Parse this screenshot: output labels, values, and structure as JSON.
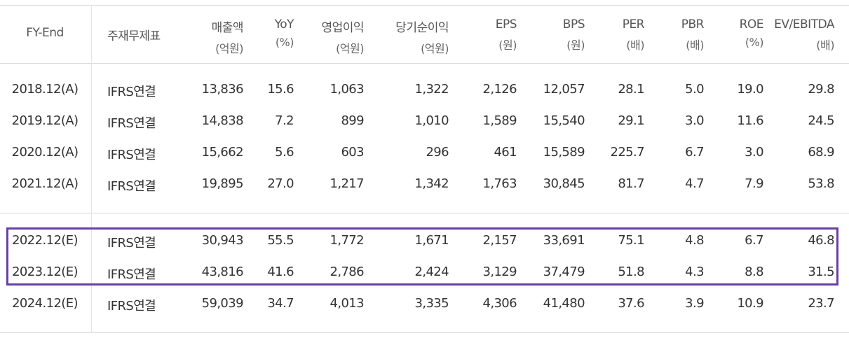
{
  "columns": [
    {
      "label": "FY-End",
      "unit": ""
    },
    {
      "label": "주재무제표",
      "unit": ""
    },
    {
      "label": "매출액",
      "unit": "(억원)"
    },
    {
      "label": "YoY",
      "unit": "(%)"
    },
    {
      "label": "영업이익",
      "unit": "(억원)"
    },
    {
      "label": "당기순이익",
      "unit": "(억원)"
    },
    {
      "label": "EPS",
      "unit": "(원)"
    },
    {
      "label": "BPS",
      "unit": "(원)"
    },
    {
      "label": "PER",
      "unit": "(배)"
    },
    {
      "label": "PBR",
      "unit": "(배)"
    },
    {
      "label": "ROE",
      "unit": "(%)"
    },
    {
      "label": "EV/EBITDA",
      "unit": "(배)"
    }
  ],
  "rows": [
    [
      "2018.12(A)",
      "IFRS연결",
      "13,836",
      "15.6",
      "1,063",
      "1,322",
      "2,126",
      "12,057",
      "28.1",
      "5.0",
      "19.0",
      "29.8"
    ],
    [
      "2019.12(A)",
      "IFRS연결",
      "14,838",
      "7.2",
      "899",
      "1,010",
      "1,589",
      "15,540",
      "29.1",
      "3.0",
      "11.6",
      "24.5"
    ],
    [
      "2020.12(A)",
      "IFRS연결",
      "15,662",
      "5.6",
      "603",
      "296",
      "461",
      "15,589",
      "225.7",
      "6.7",
      "3.0",
      "68.9"
    ],
    [
      "2021.12(A)",
      "IFRS연결",
      "19,895",
      "27.0",
      "1,217",
      "1,342",
      "1,763",
      "30,845",
      "81.7",
      "4.7",
      "7.9",
      "53.8"
    ],
    [
      "2022.12(E)",
      "IFRS연결",
      "30,943",
      "55.5",
      "1,772",
      "1,671",
      "2,157",
      "33,691",
      "75.1",
      "4.8",
      "6.7",
      "46.8"
    ],
    [
      "2023.12(E)",
      "IFRS연결",
      "43,816",
      "41.6",
      "2,786",
      "2,424",
      "3,129",
      "37,479",
      "51.8",
      "4.3",
      "8.8",
      "31.5"
    ],
    [
      "2024.12(E)",
      "IFRS연결",
      "59,039",
      "34.7",
      "4,013",
      "3,335",
      "4,306",
      "41,480",
      "37.6",
      "3.9",
      "10.9",
      "23.7"
    ]
  ],
  "colors": {
    "highlight_border": "#6a3ea1",
    "grid_line": "#d9d9d9"
  }
}
